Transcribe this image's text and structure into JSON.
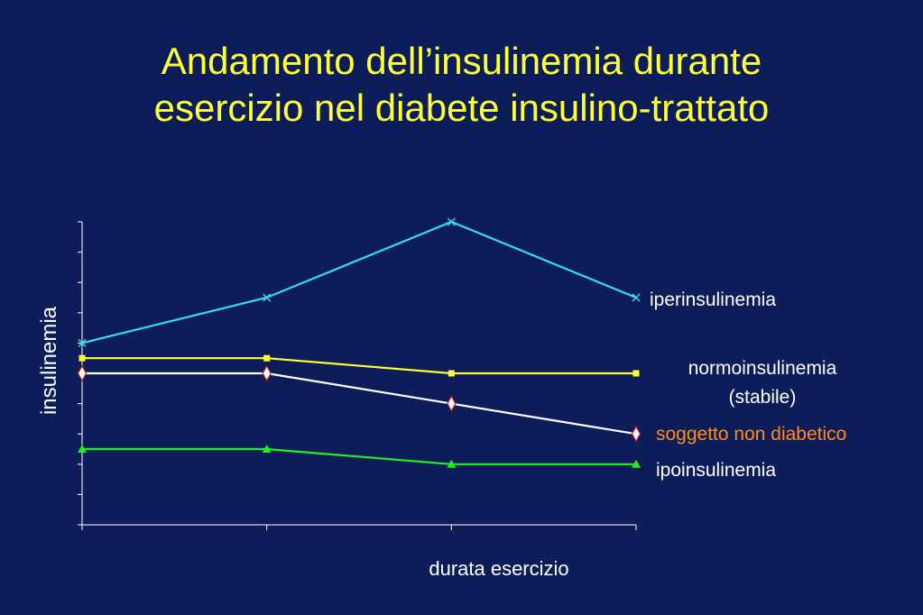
{
  "title": {
    "line1": "Andamento dell’insulinemia durante",
    "line2": "esercizio nel diabete insulino-trattato"
  },
  "chart_data": {
    "type": "line",
    "x": [
      0,
      1,
      2,
      3
    ],
    "xlabel": "durata esercizio",
    "ylabel": "insulinemia",
    "ylim": [
      0,
      10
    ],
    "grid": false,
    "series": [
      {
        "name": "iperinsulinemia",
        "values": [
          6.0,
          7.5,
          10.0,
          7.5
        ],
        "color": "#33ddee",
        "marker": "x"
      },
      {
        "name": "normoinsulinemia (stabile)",
        "label_lines": [
          "normoinsulinemia",
          "(stabile)"
        ],
        "values": [
          5.5,
          5.5,
          5.0,
          5.0
        ],
        "color": "#ffff33",
        "marker": "square"
      },
      {
        "name": "soggetto non diabetico",
        "values": [
          5.0,
          5.0,
          4.0,
          3.0
        ],
        "color": "#ffffff",
        "marker": "diamond",
        "label_color": "#ff8c1a"
      },
      {
        "name": "ipoinsulinemia",
        "values": [
          2.5,
          2.5,
          2.0,
          2.0
        ],
        "color": "#22ee22",
        "marker": "triangle"
      }
    ]
  }
}
